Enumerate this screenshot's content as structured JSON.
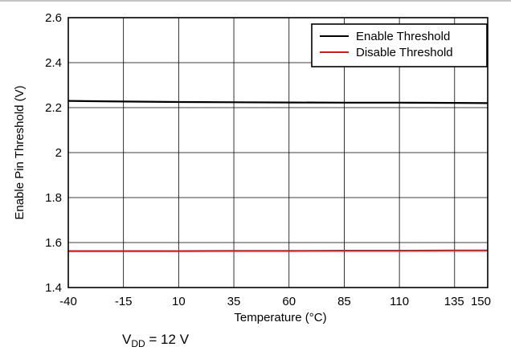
{
  "chart_data": {
    "type": "line",
    "title": "",
    "xlabel": "Temperature (°C)",
    "ylabel": "Enable Pin Threshold (V)",
    "xlim": [
      -40,
      150
    ],
    "ylim": [
      1.4,
      2.6
    ],
    "x_ticks": [
      -40,
      -15,
      10,
      35,
      60,
      85,
      110,
      135,
      150
    ],
    "x_tick_labels": [
      "-40",
      "-15",
      "10",
      "35",
      "60",
      "85",
      "110",
      "135",
      "150"
    ],
    "y_ticks": [
      1.4,
      1.6,
      1.8,
      2,
      2.2,
      2.4,
      2.6
    ],
    "y_tick_labels": [
      "1.4",
      "1.6",
      "1.8",
      "2",
      "2.2",
      "2.4",
      "2.6"
    ],
    "grid": true,
    "legend_position": "top-right",
    "series": [
      {
        "name": "Enable Threshold",
        "color": "#000000",
        "x": [
          -40,
          -15,
          10,
          35,
          60,
          85,
          110,
          135,
          150
        ],
        "y": [
          2.23,
          2.227,
          2.225,
          2.224,
          2.223,
          2.222,
          2.222,
          2.221,
          2.22
        ]
      },
      {
        "name": "Disable Threshold",
        "color": "#ee1111",
        "x": [
          -40,
          -15,
          10,
          35,
          60,
          85,
          110,
          135,
          150
        ],
        "y": [
          1.562,
          1.562,
          1.562,
          1.563,
          1.563,
          1.564,
          1.564,
          1.565,
          1.565
        ]
      }
    ],
    "annotation": {
      "prefix": "V",
      "subscript": "DD",
      "suffix": " = 12 V"
    }
  }
}
